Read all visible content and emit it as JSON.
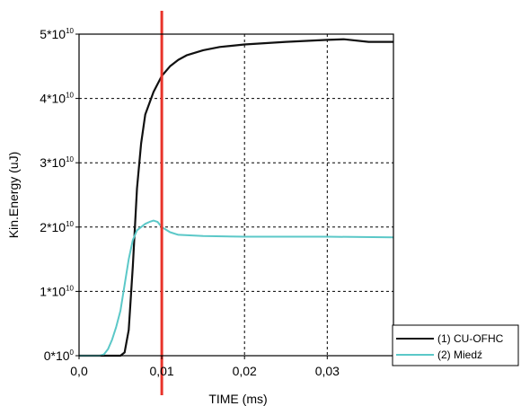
{
  "chart_data": {
    "type": "line",
    "xlabel": "TIME (ms)",
    "ylabel": "Kin.Energy (uJ)",
    "xlim": [
      0,
      0.038
    ],
    "ylim": [
      0,
      50000000000.0
    ],
    "x_ticks": [
      {
        "value": 0.0,
        "label": "0,0"
      },
      {
        "value": 0.01,
        "label": "0,01"
      },
      {
        "value": 0.02,
        "label": "0,02"
      },
      {
        "value": 0.03,
        "label": "0,03"
      }
    ],
    "y_ticks": [
      {
        "value": 0,
        "base": "0*10",
        "exp": "0"
      },
      {
        "value": 10000000000.0,
        "base": "1*10",
        "exp": "10"
      },
      {
        "value": 20000000000.0,
        "base": "2*10",
        "exp": "10"
      },
      {
        "value": 30000000000.0,
        "base": "3*10",
        "exp": "10"
      },
      {
        "value": 40000000000.0,
        "base": "4*10",
        "exp": "10"
      },
      {
        "value": 50000000000.0,
        "base": "5*10",
        "exp": "10"
      }
    ],
    "grid": true,
    "legend_position": "bottom-right",
    "vertical_marker": {
      "x": 0.01,
      "color": "#e8332a"
    },
    "series": [
      {
        "name": "(1) CU-OFHC",
        "color": "#111111",
        "x": [
          0,
          0.005,
          0.0055,
          0.006,
          0.0065,
          0.007,
          0.0075,
          0.008,
          0.009,
          0.01,
          0.011,
          0.012,
          0.013,
          0.015,
          0.017,
          0.02,
          0.025,
          0.03,
          0.032,
          0.035,
          0.038
        ],
        "y": [
          0,
          0,
          500000000.0,
          4000000000.0,
          14000000000.0,
          26000000000.0,
          33000000000.0,
          37500000000.0,
          41000000000.0,
          43500000000.0,
          45000000000.0,
          46000000000.0,
          46700000000.0,
          47500000000.0,
          48000000000.0,
          48400000000.0,
          48800000000.0,
          49100000000.0,
          49200000000.0,
          48800000000.0,
          48800000000.0
        ]
      },
      {
        "name": "(2) Miedź",
        "color": "#5bc8c8",
        "x": [
          0,
          0.0025,
          0.003,
          0.0035,
          0.004,
          0.0045,
          0.005,
          0.0055,
          0.006,
          0.0065,
          0.007,
          0.0075,
          0.008,
          0.0085,
          0.009,
          0.0095,
          0.01,
          0.011,
          0.012,
          0.015,
          0.02,
          0.03,
          0.038
        ],
        "y": [
          0,
          0,
          200000000.0,
          1000000000.0,
          2500000000.0,
          4500000000.0,
          7000000000.0,
          11000000000.0,
          15000000000.0,
          18000000000.0,
          19500000000.0,
          20000000000.0,
          20500000000.0,
          20800000000.0,
          21000000000.0,
          20800000000.0,
          20000000000.0,
          19200000000.0,
          18800000000.0,
          18600000000.0,
          18500000000.0,
          18500000000.0,
          18400000000.0
        ]
      }
    ]
  }
}
